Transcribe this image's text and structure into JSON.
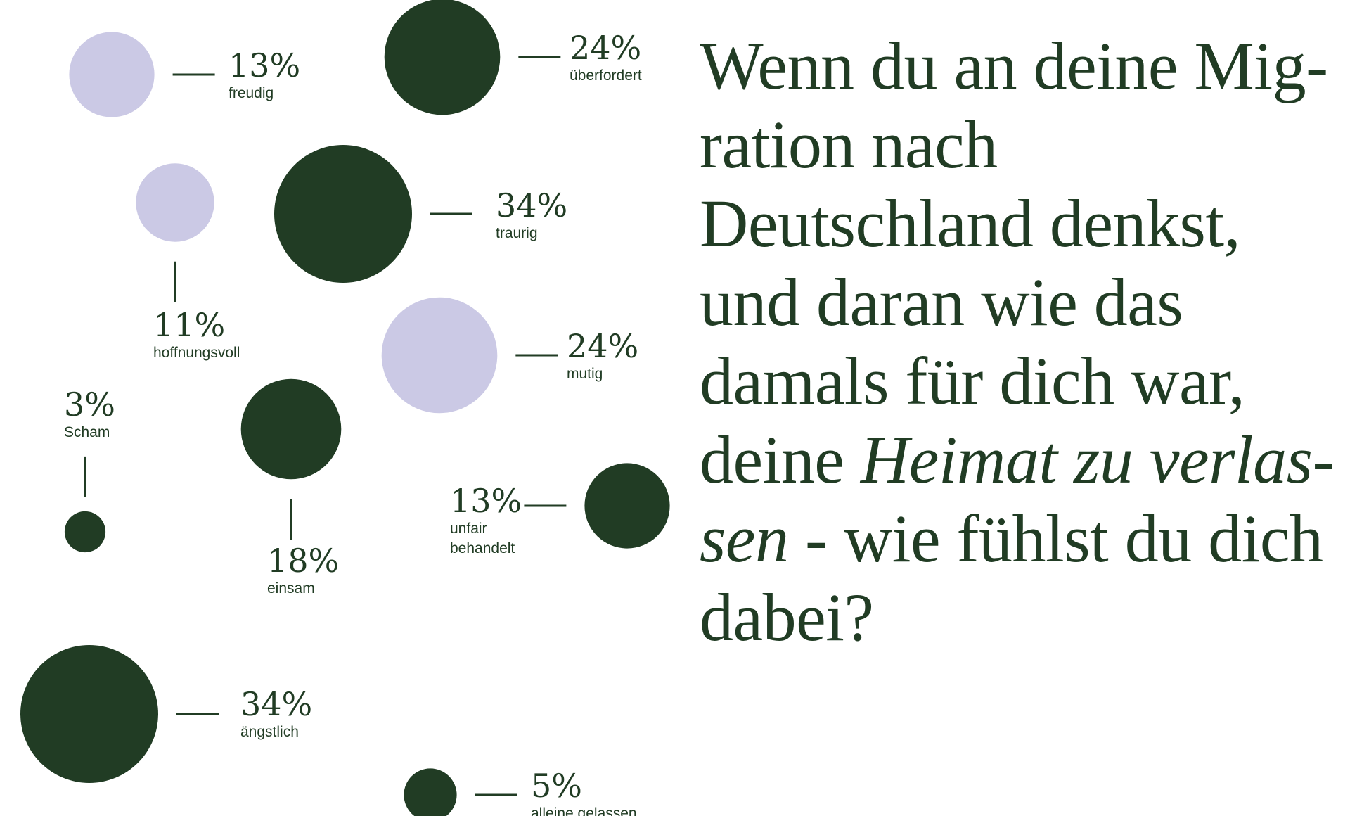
{
  "question": {
    "part1": "Wenn du an deine Mig-ration nach Deutschland denkst, und daran wie das damals für dich war, deine ",
    "emphasis": "Heimat zu verlas-sen",
    "part2": " - wie fühlst du dich dabei?"
  },
  "colors": {
    "dark": "#213c24",
    "light": "#cbc9e5",
    "text": "#213c24"
  },
  "chart_data": {
    "type": "bubble",
    "unit": "%",
    "items": [
      {
        "label": "freudig",
        "percent": "13%",
        "value": 13,
        "color": "light"
      },
      {
        "label": "überfordert",
        "percent": "24%",
        "value": 24,
        "color": "dark"
      },
      {
        "label": "hoffnungsvoll",
        "percent": "11%",
        "value": 11,
        "color": "light"
      },
      {
        "label": "traurig",
        "percent": "34%",
        "value": 34,
        "color": "dark"
      },
      {
        "label": "mutig",
        "percent": "24%",
        "value": 24,
        "color": "light"
      },
      {
        "label": "Scham",
        "percent": "3%",
        "value": 3,
        "color": "dark"
      },
      {
        "label": "einsam",
        "percent": "18%",
        "value": 18,
        "color": "dark"
      },
      {
        "label": "unfair behandelt",
        "percent": "13%",
        "value": 13,
        "color": "dark"
      },
      {
        "label": "ängstlich",
        "percent": "34%",
        "value": 34,
        "color": "dark"
      },
      {
        "label": "alleine gelassen",
        "percent": "5%",
        "value": 5,
        "color": "dark"
      }
    ]
  }
}
